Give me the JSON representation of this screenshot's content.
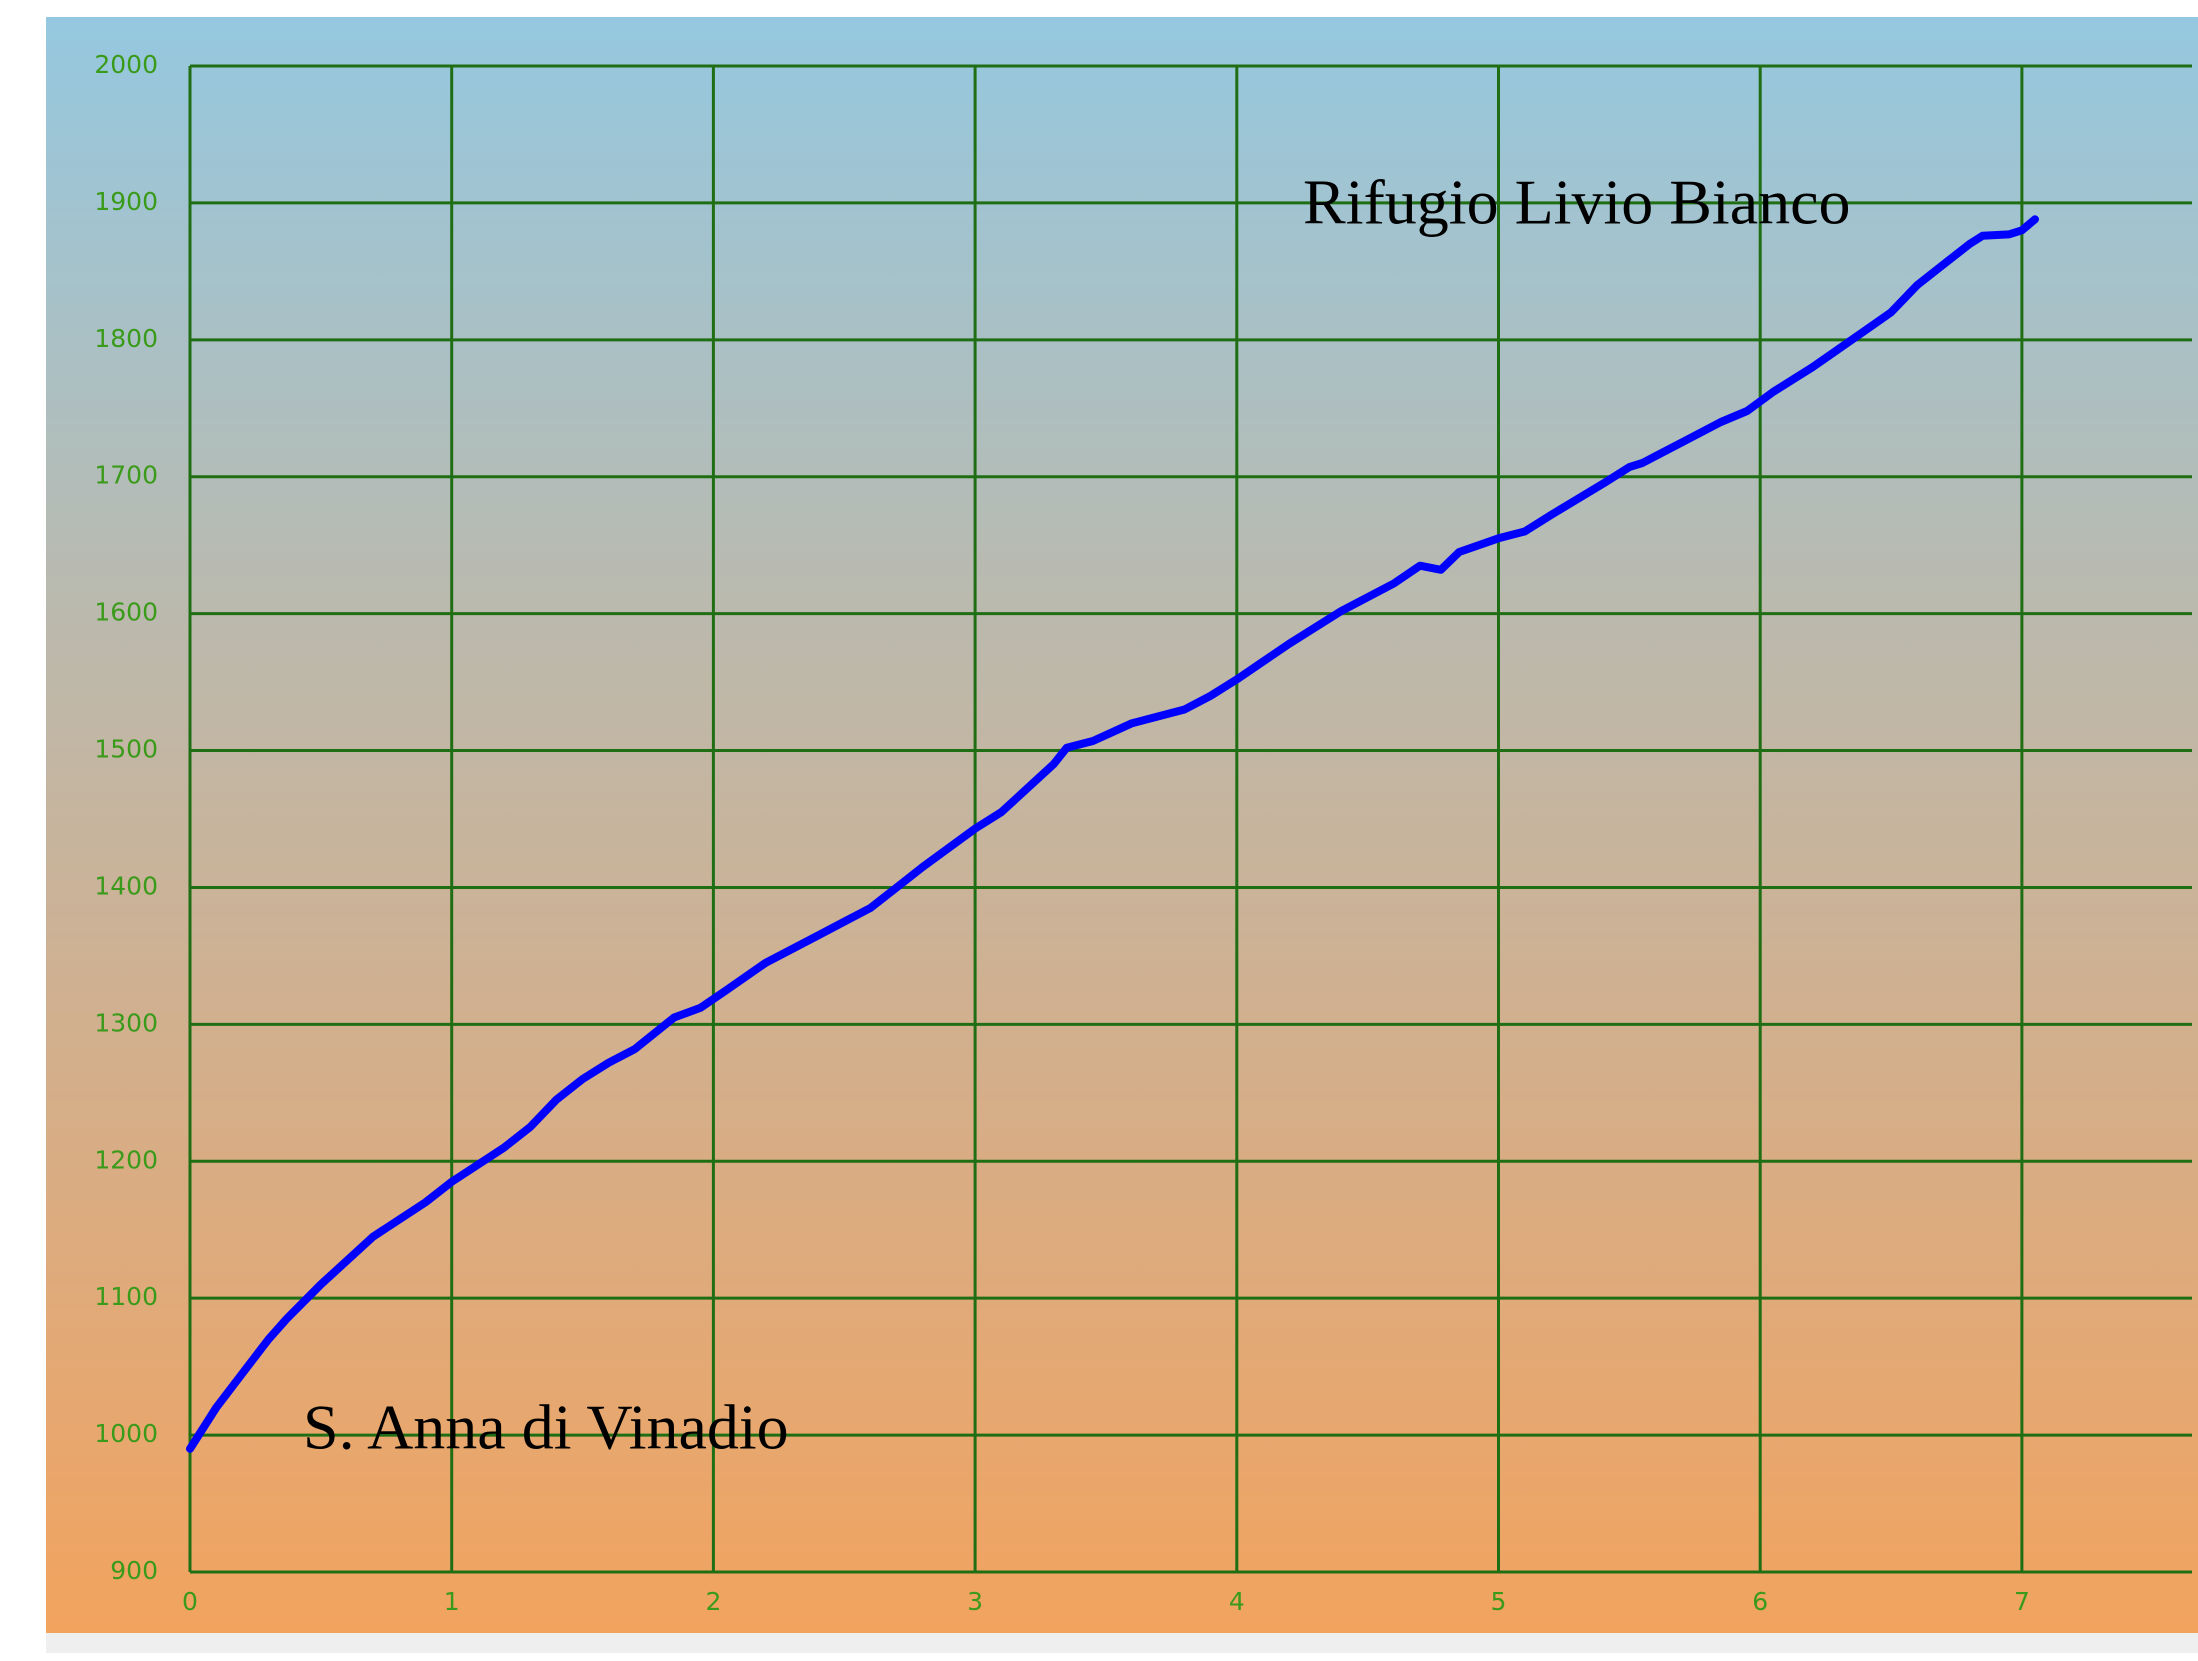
{
  "chart_data": {
    "type": "line",
    "annotations": [
      "Rifugio Livio Bianco",
      "S. Anna di Vinadio"
    ],
    "x": [
      0,
      0.1,
      0.2,
      0.3,
      0.37,
      0.5,
      0.7,
      0.9,
      1,
      1.2,
      1.3,
      1.4,
      1.5,
      1.6,
      1.7,
      1.85,
      1.95,
      2.05,
      2.2,
      2.4,
      2.5,
      2.6,
      2.7,
      2.8,
      3,
      3.1,
      3.3,
      3.35,
      3.45,
      3.6,
      3.8,
      3.9,
      4,
      4.2,
      4.4,
      4.6,
      4.7,
      4.78,
      4.85,
      5,
      5.1,
      5.2,
      5.4,
      5.5,
      5.55,
      5.7,
      5.85,
      5.95,
      6.05,
      6.2,
      6.35,
      6.5,
      6.6,
      6.7,
      6.8,
      6.85,
      6.95,
      7,
      7.05
    ],
    "series": [
      {
        "color": "#0000ff",
        "values": [
          990,
          1020,
          1045,
          1070,
          1085,
          1110,
          1145,
          1170,
          1185,
          1210,
          1225,
          1245,
          1260,
          1272,
          1282,
          1305,
          1312,
          1325,
          1345,
          1365,
          1375,
          1385,
          1400,
          1415,
          1443,
          1455,
          1490,
          1502,
          1507,
          1520,
          1530,
          1540,
          1552,
          1578,
          1602,
          1622,
          1635,
          1632,
          1645,
          1655,
          1660,
          1672,
          1695,
          1707,
          1710,
          1725,
          1740,
          1748,
          1762,
          1780,
          1800,
          1820,
          1840,
          1855,
          1870,
          1876,
          1877,
          1880,
          1888
        ]
      }
    ],
    "xlim": [
      0,
      7.65
    ],
    "ylim": [
      900,
      2000
    ],
    "xticks": [
      0,
      1,
      2,
      3,
      4,
      5,
      6,
      7
    ],
    "yticks": [
      900,
      1000,
      1100,
      1200,
      1300,
      1400,
      1500,
      1600,
      1700,
      1800,
      1900,
      2000
    ],
    "grid": true,
    "grid_color": "#1f6e14"
  }
}
